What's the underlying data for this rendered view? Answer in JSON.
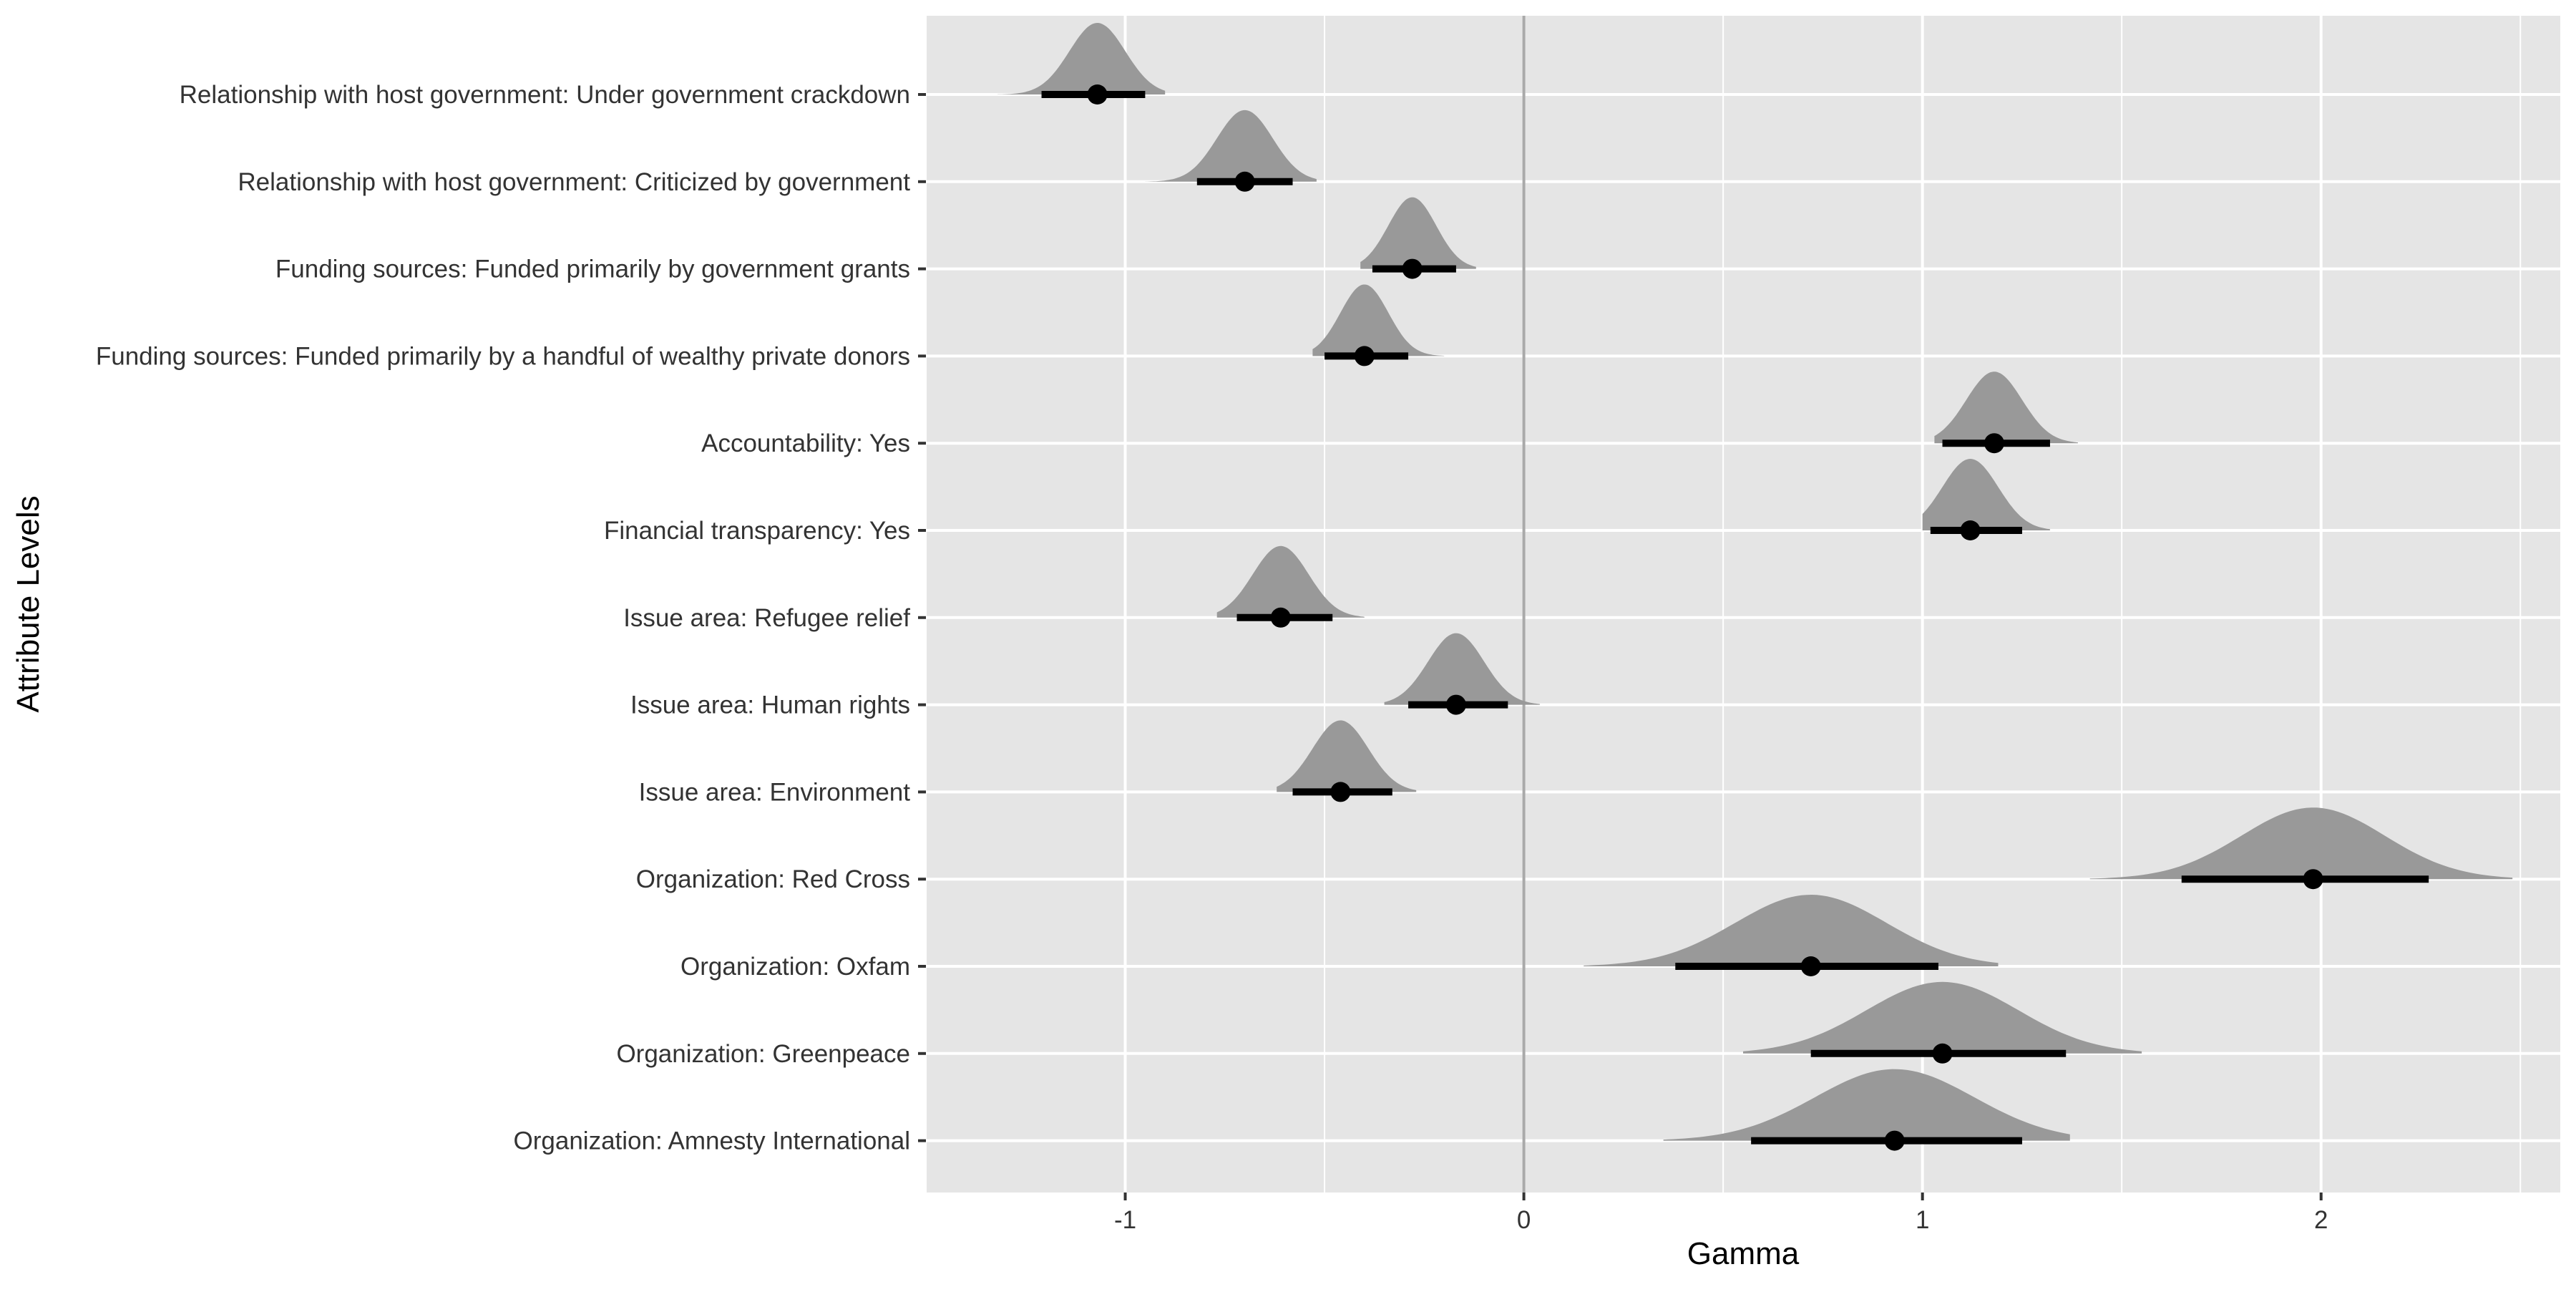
{
  "chart_data": {
    "type": "scatter",
    "subtype": "halfeye-point-interval",
    "title": "",
    "xlabel": "Gamma",
    "ylabel": "Attribute Levels",
    "xlim": [
      -1.5,
      2.6
    ],
    "xticks": [
      -1,
      0,
      1,
      2
    ],
    "xtick_labels": [
      "-1",
      "0",
      "1",
      "2"
    ],
    "reference_line_x": 0,
    "grid": true,
    "legend": "none",
    "colors": {
      "panel": "#e5e5e5",
      "grid": "#ffffff",
      "density": "#999999",
      "point": "#000000",
      "reference_line": "#a9a9a9",
      "text": "#333333"
    },
    "categories": [
      "Relationship with host government: Under government crackdown",
      "Relationship with host government: Criticized by government",
      "Funding sources: Funded primarily by government grants",
      "Funding sources: Funded primarily by a handful of wealthy private donors",
      "Accountability: Yes",
      "Financial transparency: Yes",
      "Issue area: Refugee relief",
      "Issue area: Human rights",
      "Issue area: Environment",
      "Organization: Red Cross",
      "Organization: Oxfam",
      "Organization: Greenpeace",
      "Organization: Amnesty International"
    ],
    "estimates": [
      {
        "point": -1.07,
        "lower": -1.21,
        "upper": -0.95,
        "dens_min": -1.32,
        "dens_max": -0.9,
        "sd": 0.07
      },
      {
        "point": -0.7,
        "lower": -0.82,
        "upper": -0.58,
        "dens_min": -0.95,
        "dens_max": -0.52,
        "sd": 0.07
      },
      {
        "point": -0.28,
        "lower": -0.38,
        "upper": -0.17,
        "dens_min": -0.41,
        "dens_max": -0.12,
        "sd": 0.06
      },
      {
        "point": -0.4,
        "lower": -0.5,
        "upper": -0.29,
        "dens_min": -0.53,
        "dens_max": -0.2,
        "sd": 0.06
      },
      {
        "point": 1.18,
        "lower": 1.05,
        "upper": 1.32,
        "dens_min": 1.03,
        "dens_max": 1.39,
        "sd": 0.07
      },
      {
        "point": 1.12,
        "lower": 1.02,
        "upper": 1.25,
        "dens_min": 1.0,
        "dens_max": 1.32,
        "sd": 0.07
      },
      {
        "point": -0.61,
        "lower": -0.72,
        "upper": -0.48,
        "dens_min": -0.77,
        "dens_max": -0.4,
        "sd": 0.07
      },
      {
        "point": -0.17,
        "lower": -0.29,
        "upper": -0.04,
        "dens_min": -0.35,
        "dens_max": 0.04,
        "sd": 0.07
      },
      {
        "point": -0.46,
        "lower": -0.58,
        "upper": -0.33,
        "dens_min": -0.62,
        "dens_max": -0.27,
        "sd": 0.07
      },
      {
        "point": 1.98,
        "lower": 1.65,
        "upper": 2.27,
        "dens_min": 1.42,
        "dens_max": 2.48,
        "sd": 0.18
      },
      {
        "point": 0.72,
        "lower": 0.38,
        "upper": 1.04,
        "dens_min": 0.15,
        "dens_max": 1.19,
        "sd": 0.19
      },
      {
        "point": 1.05,
        "lower": 0.72,
        "upper": 1.36,
        "dens_min": 0.55,
        "dens_max": 1.55,
        "sd": 0.19
      },
      {
        "point": 0.93,
        "lower": 0.57,
        "upper": 1.25,
        "dens_min": 0.35,
        "dens_max": 1.37,
        "sd": 0.2
      }
    ]
  }
}
